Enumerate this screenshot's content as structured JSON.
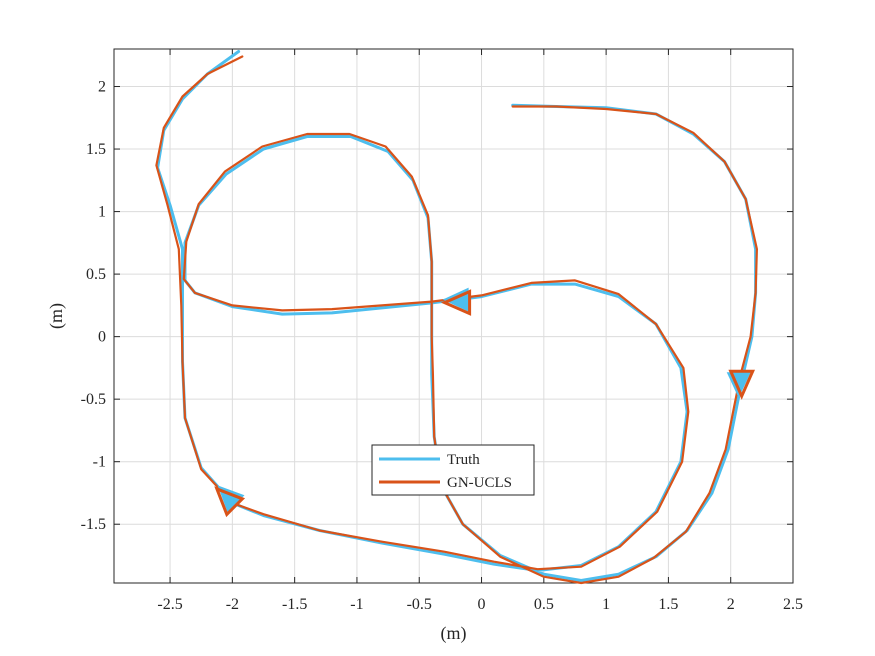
{
  "chart_data": {
    "type": "line",
    "title": "",
    "xlabel": "(m)",
    "ylabel": "(m)",
    "xlim": [
      -2.95,
      2.5
    ],
    "ylim": [
      -1.97,
      2.3
    ],
    "grid": true,
    "legend_position": "center-bottom",
    "xticks": [
      -2.5,
      -2,
      -1.5,
      -1,
      -0.5,
      0,
      0.5,
      1,
      1.5,
      2,
      2.5
    ],
    "xtick_labels": [
      "-2.5",
      "-2",
      "-1.5",
      "-1",
      "-0.5",
      "0",
      "0.5",
      "1",
      "1.5",
      "2",
      "2.5"
    ],
    "yticks": [
      -1.5,
      -1,
      -0.5,
      0,
      0.5,
      1,
      1.5,
      2
    ],
    "ytick_labels": [
      "-1.5",
      "-1",
      "-0.5",
      "0",
      "0.5",
      "1",
      "1.5",
      "2"
    ],
    "series": [
      {
        "name": "Truth",
        "color": "#4DBEEE",
        "points": [
          [
            0.25,
            1.85
          ],
          [
            0.6,
            1.84
          ],
          [
            1.0,
            1.83
          ],
          [
            1.4,
            1.78
          ],
          [
            1.7,
            1.62
          ],
          [
            1.95,
            1.4
          ],
          [
            2.12,
            1.1
          ],
          [
            2.2,
            0.7
          ],
          [
            2.2,
            0.35
          ],
          [
            2.17,
            0.0
          ],
          [
            2.1,
            -0.3
          ],
          [
            2.05,
            -0.55
          ],
          [
            1.98,
            -0.9
          ],
          [
            1.85,
            -1.25
          ],
          [
            1.65,
            -1.55
          ],
          [
            1.4,
            -1.76
          ],
          [
            1.1,
            -1.9
          ],
          [
            0.8,
            -1.95
          ],
          [
            0.5,
            -1.9
          ],
          [
            0.15,
            -1.75
          ],
          [
            -0.15,
            -1.5
          ],
          [
            -0.32,
            -1.2
          ],
          [
            -0.38,
            -0.8
          ],
          [
            -0.4,
            -0.3
          ],
          [
            -0.4,
            0.0
          ],
          [
            -0.4,
            0.25
          ],
          [
            -0.4,
            0.6
          ],
          [
            -0.43,
            0.95
          ],
          [
            -0.55,
            1.25
          ],
          [
            -0.75,
            1.48
          ],
          [
            -1.05,
            1.6
          ],
          [
            -1.4,
            1.6
          ],
          [
            -1.75,
            1.5
          ],
          [
            -2.05,
            1.3
          ],
          [
            -2.27,
            1.05
          ],
          [
            -2.38,
            0.75
          ],
          [
            -2.38,
            0.45
          ],
          [
            -2.3,
            0.35
          ],
          [
            -2.0,
            0.24
          ],
          [
            -1.6,
            0.18
          ],
          [
            -1.2,
            0.19
          ],
          [
            -0.8,
            0.23
          ],
          [
            -0.4,
            0.27
          ],
          [
            0.0,
            0.32
          ],
          [
            0.4,
            0.42
          ],
          [
            0.75,
            0.42
          ],
          [
            1.1,
            0.32
          ],
          [
            1.4,
            0.1
          ],
          [
            1.6,
            -0.25
          ],
          [
            1.65,
            -0.6
          ],
          [
            1.6,
            -1.0
          ],
          [
            1.4,
            -1.4
          ],
          [
            1.1,
            -1.68
          ],
          [
            0.8,
            -1.83
          ],
          [
            0.45,
            -1.87
          ],
          [
            0.1,
            -1.82
          ],
          [
            -0.3,
            -1.74
          ],
          [
            -0.8,
            -1.65
          ],
          [
            -1.3,
            -1.55
          ],
          [
            -1.75,
            -1.43
          ],
          [
            -2.0,
            -1.33
          ],
          [
            -2.25,
            -1.05
          ],
          [
            -2.38,
            -0.65
          ],
          [
            -2.4,
            -0.2
          ],
          [
            -2.4,
            0.25
          ],
          [
            -2.4,
            0.7
          ],
          [
            -2.5,
            1.05
          ],
          [
            -2.6,
            1.35
          ],
          [
            -2.55,
            1.65
          ],
          [
            -2.4,
            1.9
          ],
          [
            -2.2,
            2.1
          ],
          [
            -1.95,
            2.28
          ]
        ]
      },
      {
        "name": "GN-UCLS",
        "color": "#D95319",
        "points": [
          [
            0.25,
            1.84
          ],
          [
            0.6,
            1.84
          ],
          [
            1.0,
            1.82
          ],
          [
            1.4,
            1.78
          ],
          [
            1.7,
            1.63
          ],
          [
            1.95,
            1.4
          ],
          [
            2.12,
            1.1
          ],
          [
            2.21,
            0.7
          ],
          [
            2.2,
            0.35
          ],
          [
            2.16,
            0.0
          ],
          [
            2.08,
            -0.3
          ],
          [
            2.03,
            -0.55
          ],
          [
            1.96,
            -0.9
          ],
          [
            1.83,
            -1.25
          ],
          [
            1.64,
            -1.56
          ],
          [
            1.38,
            -1.77
          ],
          [
            1.1,
            -1.92
          ],
          [
            0.8,
            -1.97
          ],
          [
            0.5,
            -1.92
          ],
          [
            0.15,
            -1.76
          ],
          [
            -0.15,
            -1.5
          ],
          [
            -0.32,
            -1.2
          ],
          [
            -0.38,
            -0.8
          ],
          [
            -0.39,
            -0.3
          ],
          [
            -0.4,
            0.0
          ],
          [
            -0.4,
            0.26
          ],
          [
            -0.4,
            0.6
          ],
          [
            -0.43,
            0.97
          ],
          [
            -0.56,
            1.28
          ],
          [
            -0.77,
            1.52
          ],
          [
            -1.06,
            1.62
          ],
          [
            -1.4,
            1.62
          ],
          [
            -1.76,
            1.52
          ],
          [
            -2.06,
            1.32
          ],
          [
            -2.27,
            1.06
          ],
          [
            -2.37,
            0.76
          ],
          [
            -2.39,
            0.46
          ],
          [
            -2.3,
            0.35
          ],
          [
            -2.0,
            0.25
          ],
          [
            -1.6,
            0.21
          ],
          [
            -1.2,
            0.22
          ],
          [
            -0.8,
            0.25
          ],
          [
            -0.4,
            0.28
          ],
          [
            0.0,
            0.33
          ],
          [
            0.4,
            0.43
          ],
          [
            0.75,
            0.45
          ],
          [
            1.1,
            0.34
          ],
          [
            1.4,
            0.1
          ],
          [
            1.62,
            -0.25
          ],
          [
            1.66,
            -0.6
          ],
          [
            1.61,
            -1.0
          ],
          [
            1.41,
            -1.4
          ],
          [
            1.11,
            -1.68
          ],
          [
            0.8,
            -1.84
          ],
          [
            0.45,
            -1.86
          ],
          [
            0.1,
            -1.8
          ],
          [
            -0.3,
            -1.72
          ],
          [
            -0.8,
            -1.64
          ],
          [
            -1.3,
            -1.55
          ],
          [
            -1.75,
            -1.42
          ],
          [
            -2.0,
            -1.33
          ],
          [
            -2.25,
            -1.06
          ],
          [
            -2.38,
            -0.65
          ],
          [
            -2.4,
            -0.2
          ],
          [
            -2.41,
            0.25
          ],
          [
            -2.43,
            0.7
          ],
          [
            -2.52,
            1.05
          ],
          [
            -2.61,
            1.37
          ],
          [
            -2.55,
            1.67
          ],
          [
            -2.4,
            1.92
          ],
          [
            -2.2,
            2.1
          ],
          [
            -1.92,
            2.24
          ]
        ]
      }
    ],
    "annotations": [
      {
        "type": "arrow",
        "x": 2.08,
        "y": -0.38,
        "direction": "down"
      },
      {
        "type": "arrow",
        "x": -0.2,
        "y": 0.28,
        "direction": "left"
      },
      {
        "type": "arrow",
        "x": -2.05,
        "y": -1.28,
        "direction": "up-left"
      }
    ]
  }
}
